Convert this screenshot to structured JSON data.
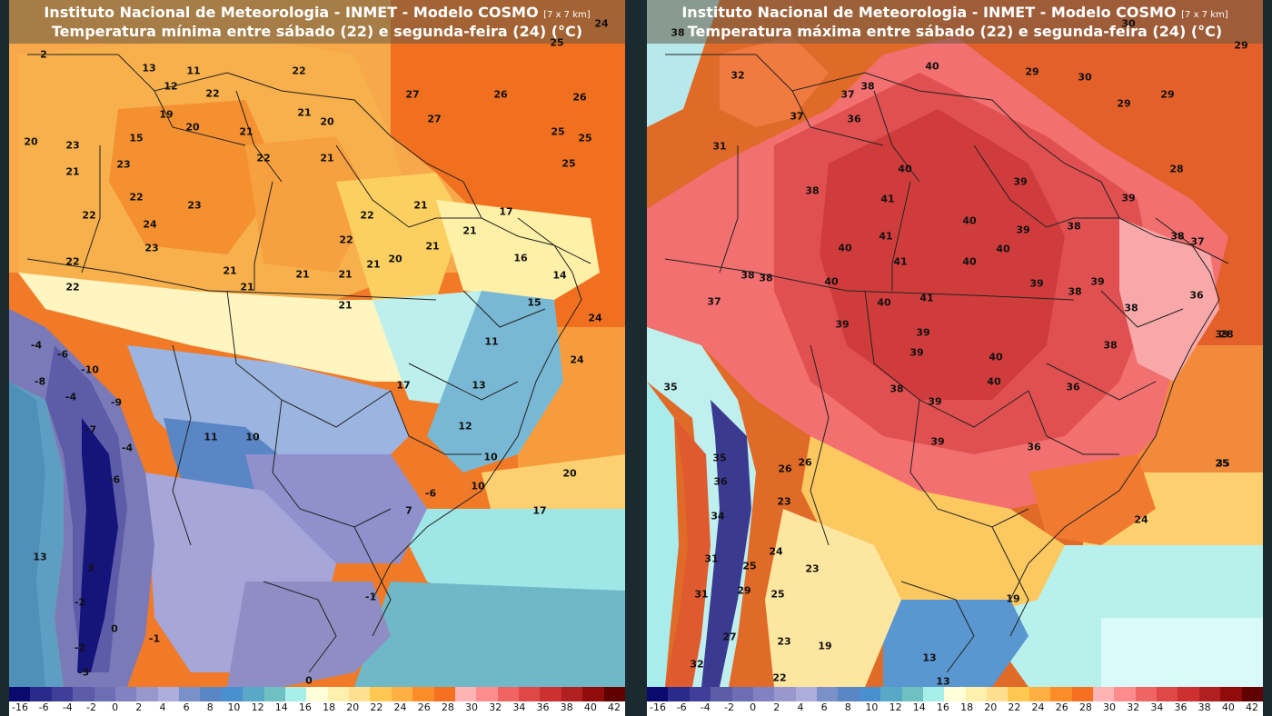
{
  "panels": [
    {
      "title1": "Instituto Nacional de Meteorologia - INMET - Modelo COSMO",
      "title_res": "[7 x 7 km]",
      "title2": "Temperatura mínima entre sábado (22) e segunda-feira (24) (°C)",
      "labels": [
        "24",
        "2",
        "13",
        "11",
        "22",
        "12",
        "22",
        "19",
        "20",
        "20",
        "23",
        "21",
        "21",
        "20",
        "15",
        "21",
        "22",
        "21",
        "23",
        "22",
        "23",
        "22",
        "21",
        "21",
        "22",
        "24",
        "23",
        "21",
        "22",
        "21",
        "17",
        "22",
        "21",
        "21",
        "21",
        "20",
        "16",
        "21",
        "22",
        "14",
        "15",
        "21",
        "-4",
        "-6",
        "-10",
        "11",
        "-8",
        "-4",
        "-9",
        "-7",
        "13",
        "17",
        "-4",
        "11",
        "10",
        "-6",
        "12",
        "13",
        "10",
        "10",
        "-6",
        "7",
        "17",
        "-1",
        "-2",
        "3",
        "0",
        "-1",
        "-2",
        "-3",
        "0",
        "27",
        "26",
        "27",
        "26",
        "25",
        "25",
        "25",
        "25",
        "24",
        "24",
        "20"
      ]
    },
    {
      "title1": "Instituto Nacional de Meteorologia - INMET - Modelo COSMO",
      "title_res": "[7 x 7 km]",
      "title2": "Temperatura máxima entre sábado (22) e segunda-feira (24) (°C)",
      "labels": [
        "38",
        "32",
        "30",
        "40",
        "29",
        "30",
        "29",
        "29",
        "29",
        "37",
        "38",
        "37",
        "36",
        "31",
        "40",
        "39",
        "38",
        "41",
        "39",
        "40",
        "39",
        "38",
        "41",
        "40",
        "40",
        "38",
        "37",
        "38",
        "38",
        "40",
        "41",
        "39",
        "38",
        "39",
        "36",
        "37",
        "41",
        "40",
        "40",
        "39",
        "38",
        "38",
        "39",
        "39",
        "40",
        "35",
        "36",
        "38",
        "39",
        "40",
        "36",
        "39",
        "35",
        "26",
        "26",
        "39",
        "36",
        "35",
        "23",
        "34",
        "24",
        "24",
        "31",
        "23",
        "25",
        "31",
        "29",
        "25",
        "19",
        "27",
        "23",
        "19",
        "32",
        "22",
        "13",
        "13",
        "28",
        "28",
        "25"
      ]
    }
  ],
  "legend": {
    "colors": [
      "#0a0a6e",
      "#2a2a8a",
      "#3f3f9a",
      "#5c5ca8",
      "#6e6eb4",
      "#8282c2",
      "#9898cc",
      "#aeaede",
      "#7a90c8",
      "#5a86c6",
      "#4a90d0",
      "#5aa8c8",
      "#6fc0c0",
      "#a6eeea",
      "#ffffd8",
      "#fff0b0",
      "#ffe090",
      "#ffc850",
      "#ffb040",
      "#fc8c28",
      "#f57020",
      "#ffb4b4",
      "#ff8c8c",
      "#f06464",
      "#e04848",
      "#cc3030",
      "#b02020",
      "#900c0c",
      "#600000"
    ],
    "ticks": [
      "-16",
      "-6",
      "-4",
      "-2",
      "0",
      "2",
      "4",
      "6",
      "8",
      "10",
      "12",
      "14",
      "16",
      "18",
      "20",
      "22",
      "24",
      "26",
      "28",
      "30",
      "32",
      "34",
      "36",
      "38",
      "40",
      "42"
    ]
  },
  "palette": {
    "background": "#1b2a2e",
    "ocean_warm": "#f08a30",
    "ocean_cool": "#8fd8e0",
    "andes_cold": "#1a1a7a",
    "hot": "#e05050"
  }
}
